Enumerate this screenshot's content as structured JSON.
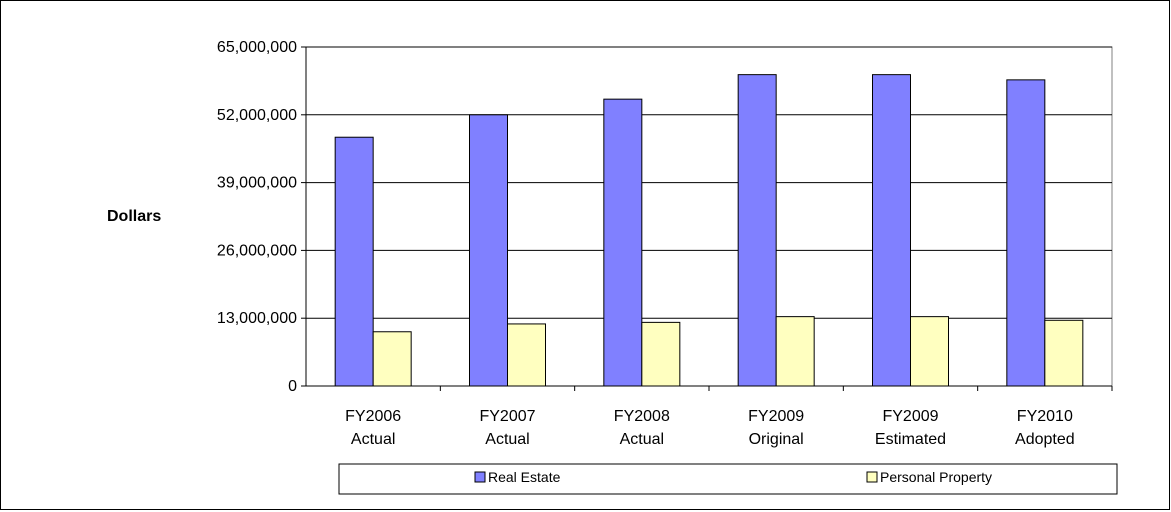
{
  "chart_data": {
    "type": "bar",
    "ylabel": "Dollars",
    "xlabel": "",
    "ylim": [
      0,
      65000000
    ],
    "yticks": [
      "0",
      "13,000,000",
      "26,000,000",
      "39,000,000",
      "52,000,000",
      "65,000,000"
    ],
    "ytick_values": [
      0,
      13000000,
      26000000,
      39000000,
      52000000,
      65000000
    ],
    "categories": [
      [
        "FY2006",
        "Actual"
      ],
      [
        "FY2007",
        "Actual"
      ],
      [
        "FY2008",
        "Actual"
      ],
      [
        "FY2009",
        "Original"
      ],
      [
        "FY2009",
        "Estimated"
      ],
      [
        "FY2010",
        "Adopted"
      ]
    ],
    "series": [
      {
        "name": "Real Estate",
        "color": "#8080ff",
        "values": [
          47700000,
          52000000,
          55000000,
          59700000,
          59700000,
          58700000
        ]
      },
      {
        "name": "Personal Property",
        "color": "#ffffc0",
        "values": [
          10400000,
          11900000,
          12200000,
          13300000,
          13300000,
          12600000
        ]
      }
    ],
    "grid": true,
    "legend_position": "bottom"
  }
}
